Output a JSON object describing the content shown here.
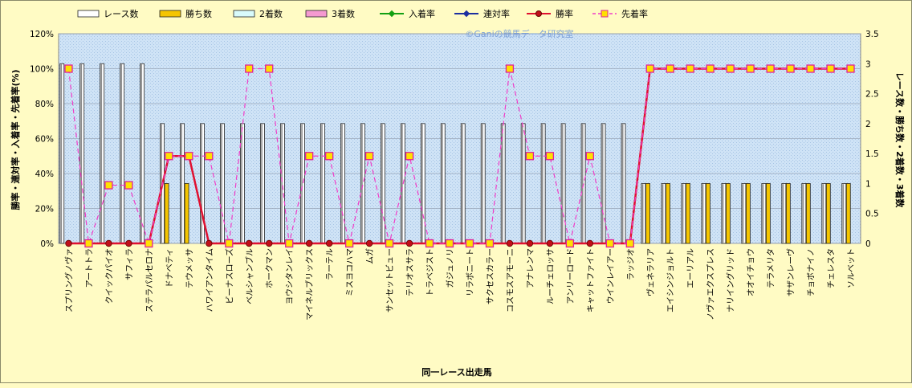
{
  "chart_data": {
    "type": "bar",
    "watermark": "©Ganiの競馬データ研究室",
    "xlabel": "同一レース出走馬",
    "ylabel_left": "勝率・連対率・入着率・先着率(%)",
    "ylabel_right": "レース数・勝ち数・2着数・3着数",
    "ylim_left": [
      0,
      120
    ],
    "ylim_right": [
      0,
      3.5
    ],
    "yticks_left": [
      "0%",
      "20%",
      "40%",
      "60%",
      "80%",
      "100%",
      "120%"
    ],
    "yticks_right": [
      "0",
      "0.5",
      "1",
      "1.5",
      "2",
      "2.5",
      "3",
      "3.5"
    ],
    "grid": true,
    "legend_position": "top",
    "categories": [
      "スプリングノヴァ",
      "アートトラ",
      "クイックパイオ",
      "サフィラ",
      "ステラパルセロナ",
      "ドナベティ",
      "テウメッサ",
      "ハワイアンタイム",
      "ビーナスローズ",
      "ベルシャンブル",
      "ホークマン",
      "ヨウシタンレイ",
      "マイネルブリックス",
      "ラーテル",
      "ミスヨコハマ",
      "ムガ",
      "サンセットビュー",
      "テリオスサラ",
      "トラベジスト",
      "ガジュノリ",
      "リラボニート",
      "サクセスカラー",
      "コスモスアモーニ",
      "アナレンマ",
      "ルーチェロッサ",
      "アンリーロード",
      "キャットファイト",
      "ウインレイアー",
      "ラッジオ",
      "ヴェネラリア",
      "エイシンジョルト",
      "エーリアル",
      "ノヴァエクスプレス",
      "ナリイングリッド",
      "オオイチョウ",
      "テラメリタ",
      "サザンレーヴ",
      "チョボナイノ",
      "チェレスタ",
      "ソルベット"
    ],
    "series": [
      {
        "name": "レース数",
        "axis": "right",
        "color": "#ffffff",
        "values": [
          3,
          3,
          3,
          3,
          3,
          2,
          2,
          2,
          2,
          2,
          2,
          2,
          2,
          2,
          2,
          2,
          2,
          2,
          2,
          2,
          2,
          2,
          2,
          2,
          2,
          2,
          2,
          2,
          2,
          1,
          1,
          1,
          1,
          1,
          1,
          1,
          1,
          1,
          1,
          1
        ]
      },
      {
        "name": "勝ち数",
        "axis": "right",
        "color": "#f5c500",
        "values": [
          0,
          0,
          0,
          0,
          0,
          1,
          1,
          0,
          0,
          0,
          0,
          0,
          0,
          0,
          0,
          0,
          0,
          0,
          0,
          0,
          0,
          0,
          0,
          0,
          0,
          0,
          0,
          0,
          0,
          1,
          1,
          1,
          1,
          1,
          1,
          1,
          1,
          1,
          1,
          1
        ]
      },
      {
        "name": "2着数",
        "axis": "right",
        "color": "#d9fbfb",
        "values": [
          0,
          0,
          0,
          0,
          0,
          0,
          0,
          0,
          0,
          0,
          0,
          0,
          0,
          0,
          0,
          0,
          0,
          0,
          0,
          0,
          0,
          0,
          0,
          0,
          0,
          0,
          0,
          0,
          0,
          0,
          0,
          0,
          0,
          0,
          0,
          0,
          0,
          0,
          0,
          0
        ]
      },
      {
        "name": "3着数",
        "axis": "right",
        "color": "#f59ad0",
        "values": [
          0,
          0,
          0,
          0,
          0,
          0,
          0,
          0,
          0,
          0,
          0,
          0,
          0,
          0,
          0,
          0,
          0,
          0,
          0,
          0,
          0,
          0,
          0,
          0,
          0,
          0,
          0,
          0,
          0,
          0,
          0,
          0,
          0,
          0,
          0,
          0,
          0,
          0,
          0,
          0
        ]
      },
      {
        "name": "入着率",
        "axis": "left",
        "color": "#13a013",
        "values": [
          0,
          0,
          0,
          0,
          0,
          50,
          50,
          0,
          0,
          0,
          0,
          0,
          0,
          0,
          0,
          0,
          0,
          0,
          0,
          0,
          0,
          0,
          0,
          0,
          0,
          0,
          0,
          0,
          0,
          100,
          100,
          100,
          100,
          100,
          100,
          100,
          100,
          100,
          100,
          100
        ]
      },
      {
        "name": "連対率",
        "axis": "left",
        "color": "#1c2fa0",
        "values": [
          0,
          0,
          0,
          0,
          0,
          50,
          50,
          0,
          0,
          0,
          0,
          0,
          0,
          0,
          0,
          0,
          0,
          0,
          0,
          0,
          0,
          0,
          0,
          0,
          0,
          0,
          0,
          0,
          0,
          100,
          100,
          100,
          100,
          100,
          100,
          100,
          100,
          100,
          100,
          100
        ]
      },
      {
        "name": "勝率",
        "axis": "left",
        "color": "#e01030",
        "values": [
          0,
          0,
          0,
          0,
          0,
          50,
          50,
          0,
          0,
          0,
          0,
          0,
          0,
          0,
          0,
          0,
          0,
          0,
          0,
          0,
          0,
          0,
          0,
          0,
          0,
          0,
          0,
          0,
          0,
          100,
          100,
          100,
          100,
          100,
          100,
          100,
          100,
          100,
          100,
          100
        ]
      },
      {
        "name": "先着率",
        "axis": "left",
        "color": "#f03cc8",
        "values": [
          100,
          0,
          33.3,
          33.3,
          0,
          50,
          50,
          50,
          0,
          100,
          100,
          0,
          50,
          50,
          0,
          50,
          0,
          50,
          0,
          0,
          0,
          0,
          100,
          50,
          50,
          0,
          50,
          0,
          0,
          100,
          100,
          100,
          100,
          100,
          100,
          100,
          100,
          100,
          100,
          100
        ]
      }
    ]
  }
}
